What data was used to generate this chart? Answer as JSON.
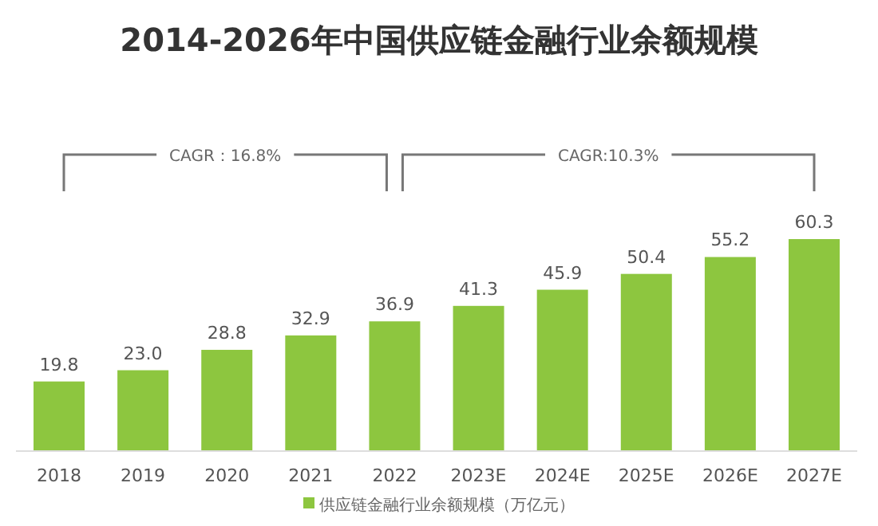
{
  "chart_data": {
    "type": "bar",
    "title": "2014-2026年中国供应链金融行业余额规模",
    "categories": [
      "2018",
      "2019",
      "2020",
      "2021",
      "2022",
      "2023E",
      "2024E",
      "2025E",
      "2026E",
      "2027E"
    ],
    "series": [
      {
        "name": "供应链金融行业余额规模（万亿元）",
        "color": "#8dc63f",
        "values": [
          19.8,
          23.0,
          28.8,
          32.9,
          36.9,
          41.3,
          45.9,
          50.4,
          55.2,
          60.3
        ],
        "value_labels": [
          "19.8",
          "23.0",
          "28.8",
          "32.9",
          "36.9",
          "41.3",
          "45.9",
          "50.4",
          "55.2",
          "60.3"
        ]
      }
    ],
    "legend": "bottom",
    "annotations": [
      "CAGR：16.8%",
      "CAGR:10.3%"
    ]
  }
}
